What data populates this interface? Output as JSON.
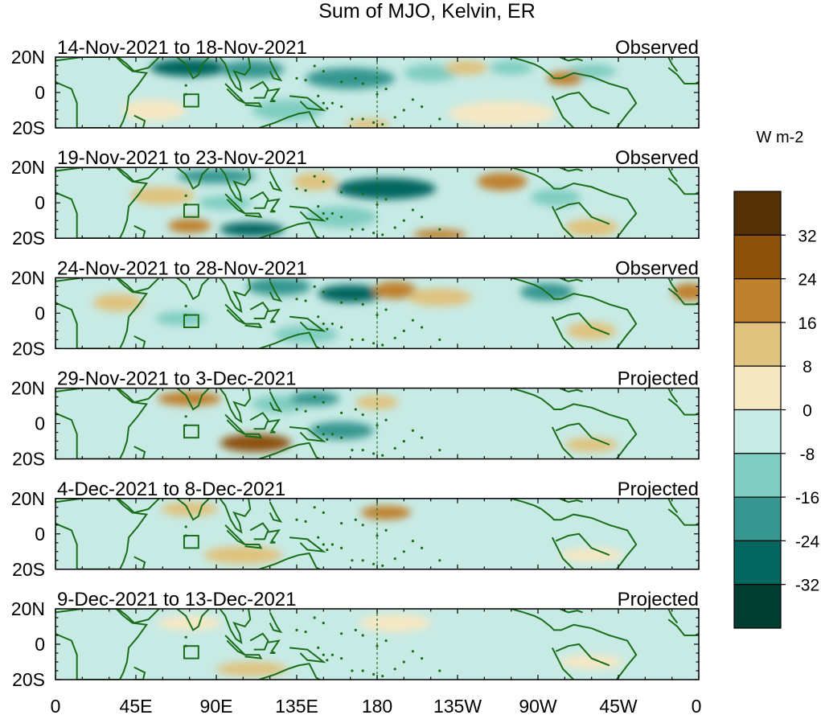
{
  "chart_data": {
    "type": "heatmap",
    "title": "Sum of MJO, Kelvin, ER",
    "variable_units": "W m-2",
    "y_tick_labels": [
      "20N",
      "0",
      "20S"
    ],
    "x_tick_labels": [
      "0",
      "45E",
      "90E",
      "135E",
      "180",
      "135W",
      "90W",
      "45W",
      "0"
    ],
    "longitude_range_deg_east": [
      0,
      360
    ],
    "latitude_range_deg": [
      -20,
      20
    ],
    "colorbar": {
      "tick_labels": [
        "32",
        "24",
        "16",
        "8",
        "0",
        "-8",
        "-16",
        "-24",
        "-32"
      ],
      "levels": [
        32,
        24,
        16,
        8,
        0,
        -8,
        -16,
        -24,
        -32
      ],
      "colors": [
        "#543005",
        "#8c510a",
        "#bf812d",
        "#dfc27d",
        "#f6e8c3",
        "#c7eae5",
        "#80cdc1",
        "#35978f",
        "#01665e",
        "#003c30"
      ]
    },
    "land_outline_color": "#1a6e1a",
    "dateline_marker_lon": 180,
    "panels": [
      {
        "date_range": "14-Nov-2021 to 18-Nov-2021",
        "status": "Observed",
        "anomalies": [
          {
            "lon": 75,
            "lat": 14,
            "rx": 22,
            "ry": 5,
            "value": -30
          },
          {
            "lon": 110,
            "lat": 13,
            "rx": 18,
            "ry": 5,
            "value": -20
          },
          {
            "lon": 165,
            "lat": 8,
            "rx": 25,
            "ry": 6,
            "value": -18
          },
          {
            "lon": 210,
            "lat": 11,
            "rx": 15,
            "ry": 5,
            "value": -12
          },
          {
            "lon": 255,
            "lat": 14,
            "rx": 12,
            "ry": 4,
            "value": -14
          },
          {
            "lon": 300,
            "lat": 12,
            "rx": 14,
            "ry": 4,
            "value": -16
          },
          {
            "lon": 230,
            "lat": 14,
            "rx": 12,
            "ry": 4,
            "value": 12
          },
          {
            "lon": 285,
            "lat": 8,
            "rx": 10,
            "ry": 4,
            "value": 16
          },
          {
            "lon": 55,
            "lat": -10,
            "rx": 18,
            "ry": 6,
            "value": 6
          },
          {
            "lon": 250,
            "lat": -12,
            "rx": 30,
            "ry": 7,
            "value": 6
          },
          {
            "lon": 130,
            "lat": -10,
            "rx": 20,
            "ry": 6,
            "value": -10
          },
          {
            "lon": 175,
            "lat": -18,
            "rx": 12,
            "ry": 3,
            "value": 14
          }
        ]
      },
      {
        "date_range": "19-Nov-2021 to 23-Nov-2021",
        "status": "Observed",
        "anomalies": [
          {
            "lon": 90,
            "lat": 15,
            "rx": 22,
            "ry": 4,
            "value": -18
          },
          {
            "lon": 60,
            "lat": 4,
            "rx": 18,
            "ry": 5,
            "value": 8
          },
          {
            "lon": 110,
            "lat": -15,
            "rx": 18,
            "ry": 4,
            "value": -26
          },
          {
            "lon": 95,
            "lat": 0,
            "rx": 15,
            "ry": 4,
            "value": -10
          },
          {
            "lon": 185,
            "lat": 8,
            "rx": 28,
            "ry": 6,
            "value": -28
          },
          {
            "lon": 145,
            "lat": 12,
            "rx": 12,
            "ry": 5,
            "value": 10
          },
          {
            "lon": 250,
            "lat": 12,
            "rx": 14,
            "ry": 5,
            "value": 20
          },
          {
            "lon": 280,
            "lat": 3,
            "rx": 14,
            "ry": 5,
            "value": -12
          },
          {
            "lon": 75,
            "lat": -13,
            "rx": 12,
            "ry": 4,
            "value": 18
          },
          {
            "lon": 215,
            "lat": -18,
            "rx": 15,
            "ry": 3,
            "value": 16
          },
          {
            "lon": 300,
            "lat": -14,
            "rx": 15,
            "ry": 5,
            "value": 12
          },
          {
            "lon": 160,
            "lat": -8,
            "rx": 20,
            "ry": 6,
            "value": -10
          }
        ]
      },
      {
        "date_range": "24-Nov-2021 to 28-Nov-2021",
        "status": "Observed",
        "anomalies": [
          {
            "lon": 125,
            "lat": 15,
            "rx": 18,
            "ry": 5,
            "value": -22
          },
          {
            "lon": 165,
            "lat": 11,
            "rx": 18,
            "ry": 5,
            "value": -26
          },
          {
            "lon": 190,
            "lat": 13,
            "rx": 12,
            "ry": 5,
            "value": 18
          },
          {
            "lon": 215,
            "lat": 9,
            "rx": 18,
            "ry": 5,
            "value": 8
          },
          {
            "lon": 275,
            "lat": 12,
            "rx": 15,
            "ry": 5,
            "value": -22
          },
          {
            "lon": 35,
            "lat": 6,
            "rx": 14,
            "ry": 5,
            "value": 10
          },
          {
            "lon": 70,
            "lat": -3,
            "rx": 14,
            "ry": 4,
            "value": -12
          },
          {
            "lon": 140,
            "lat": -12,
            "rx": 18,
            "ry": 5,
            "value": -16
          },
          {
            "lon": 300,
            "lat": -10,
            "rx": 14,
            "ry": 5,
            "value": 14
          },
          {
            "lon": 355,
            "lat": 12,
            "rx": 10,
            "ry": 5,
            "value": 16
          },
          {
            "lon": 245,
            "lat": -8,
            "rx": 30,
            "ry": 6,
            "value": -6
          }
        ]
      },
      {
        "date_range": "29-Nov-2021 to 3-Dec-2021",
        "status": "Projected",
        "anomalies": [
          {
            "lon": 75,
            "lat": 14,
            "rx": 18,
            "ry": 4,
            "value": 22
          },
          {
            "lon": 112,
            "lat": -11,
            "rx": 20,
            "ry": 5,
            "value": 26
          },
          {
            "lon": 125,
            "lat": 11,
            "rx": 15,
            "ry": 5,
            "value": -14
          },
          {
            "lon": 145,
            "lat": 14,
            "rx": 14,
            "ry": 4,
            "value": -20
          },
          {
            "lon": 160,
            "lat": -4,
            "rx": 18,
            "ry": 5,
            "value": -20
          },
          {
            "lon": 180,
            "lat": 12,
            "rx": 12,
            "ry": 4,
            "value": 14
          },
          {
            "lon": 235,
            "lat": 5,
            "rx": 30,
            "ry": 6,
            "value": -8
          },
          {
            "lon": 300,
            "lat": -12,
            "rx": 15,
            "ry": 4,
            "value": 10
          },
          {
            "lon": 40,
            "lat": 2,
            "rx": 18,
            "ry": 6,
            "value": -8
          }
        ]
      },
      {
        "date_range": "4-Dec-2021 to 8-Dec-2021",
        "status": "Projected",
        "anomalies": [
          {
            "lon": 75,
            "lat": 14,
            "rx": 16,
            "ry": 4,
            "value": 10
          },
          {
            "lon": 105,
            "lat": -12,
            "rx": 22,
            "ry": 5,
            "value": 12
          },
          {
            "lon": 185,
            "lat": 12,
            "rx": 14,
            "ry": 4,
            "value": 16
          },
          {
            "lon": 140,
            "lat": 8,
            "rx": 18,
            "ry": 5,
            "value": -8
          },
          {
            "lon": 230,
            "lat": 2,
            "rx": 35,
            "ry": 7,
            "value": -6
          },
          {
            "lon": 40,
            "lat": -5,
            "rx": 20,
            "ry": 6,
            "value": -6
          },
          {
            "lon": 300,
            "lat": -12,
            "rx": 18,
            "ry": 4,
            "value": 6
          }
        ]
      },
      {
        "date_range": "9-Dec-2021 to 13-Dec-2021",
        "status": "Projected",
        "anomalies": [
          {
            "lon": 75,
            "lat": 12,
            "rx": 18,
            "ry": 4,
            "value": 7
          },
          {
            "lon": 110,
            "lat": -14,
            "rx": 20,
            "ry": 4,
            "value": 12
          },
          {
            "lon": 190,
            "lat": 12,
            "rx": 20,
            "ry": 5,
            "value": 6
          },
          {
            "lon": 140,
            "lat": 5,
            "rx": 18,
            "ry": 5,
            "value": -6
          },
          {
            "lon": 240,
            "lat": 0,
            "rx": 35,
            "ry": 7,
            "value": -5
          },
          {
            "lon": 40,
            "lat": -2,
            "rx": 20,
            "ry": 6,
            "value": -6
          },
          {
            "lon": 300,
            "lat": -10,
            "rx": 18,
            "ry": 4,
            "value": 5
          }
        ]
      }
    ]
  }
}
